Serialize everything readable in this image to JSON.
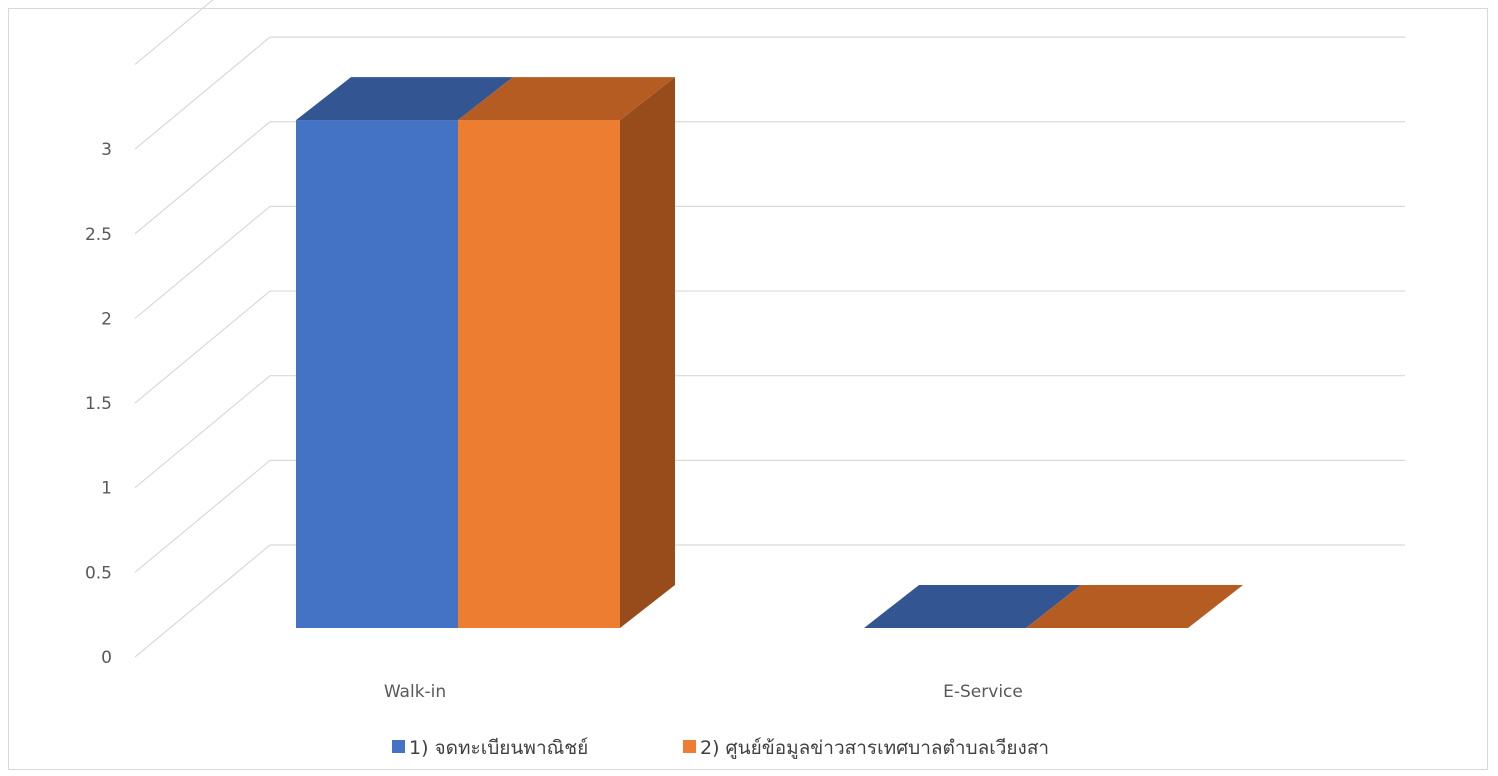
{
  "chart_data": {
    "type": "bar",
    "style": "3d-clustered-column",
    "categories": [
      "Walk-in",
      "E-Service"
    ],
    "series": [
      {
        "name": "1) จดทะเบียนพาณิชย์",
        "values": [
          3,
          0
        ],
        "color": "#4472C4",
        "top_color": "#335693",
        "side_color": "#2F5597"
      },
      {
        "name": "2) ศูนย์ข้อมูลข่าวสารเทศบาลตำบลเวียงสา",
        "values": [
          3,
          0
        ],
        "color": "#ED7D31",
        "top_color": "#B55C23",
        "side_color": "#994C1B"
      }
    ],
    "y_ticks": [
      "0",
      "0.5",
      "1",
      "1.5",
      "2",
      "2.5",
      "3"
    ],
    "ylim": [
      0,
      3.5
    ],
    "grid": true,
    "legend_position": "bottom"
  }
}
